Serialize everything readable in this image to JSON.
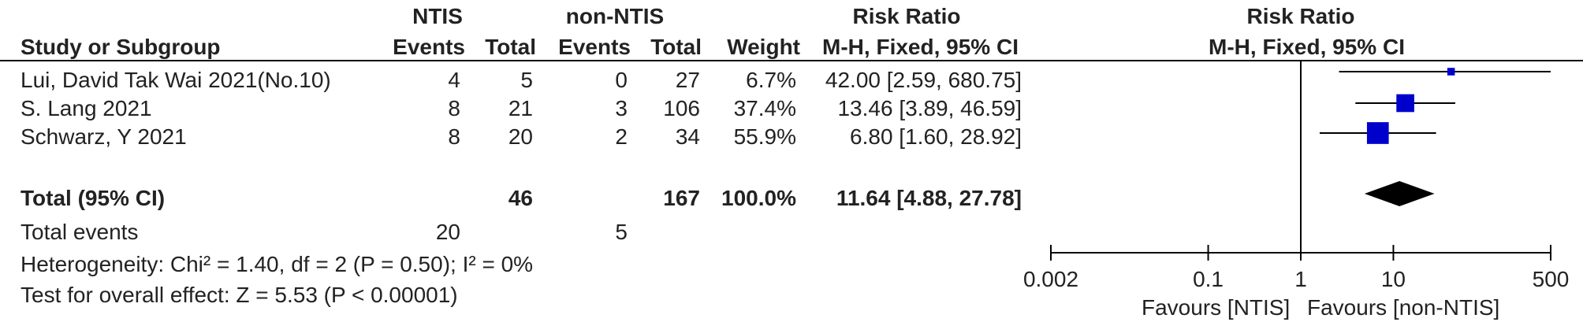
{
  "headers": {
    "group1": "NTIS",
    "group2": "non-NTIS",
    "risk_ratio": "Risk Ratio",
    "risk_ratio_plot": "Risk Ratio",
    "study": "Study or Subgroup",
    "events1": "Events",
    "total1": "Total",
    "events2": "Events",
    "total2": "Total",
    "weight": "Weight",
    "method": "M-H, Fixed, 95% CI",
    "method_plot": "M-H, Fixed, 95% CI"
  },
  "studies": [
    {
      "name": "Lui, David Tak Wai 2021(No.10)",
      "events1": "4",
      "total1": "5",
      "events2": "0",
      "total2": "27",
      "weight": "6.7%",
      "ci_text": "42.00 [2.59, 680.75]"
    },
    {
      "name": "S. Lang 2021",
      "events1": "8",
      "total1": "21",
      "events2": "3",
      "total2": "106",
      "weight": "37.4%",
      "ci_text": "13.46 [3.89, 46.59]"
    },
    {
      "name": "Schwarz, Y 2021",
      "events1": "8",
      "total1": "20",
      "events2": "2",
      "total2": "34",
      "weight": "55.9%",
      "ci_text": "6.80 [1.60, 28.92]"
    }
  ],
  "total_row": {
    "label": "Total (95% CI)",
    "total1": "46",
    "total2": "167",
    "weight": "100.0%",
    "ci_text": "11.64 [4.88, 27.78]"
  },
  "events_row": {
    "label": "Total events",
    "events1": "20",
    "events2": "5"
  },
  "heterogeneity": "Heterogeneity: Chi² = 1.40, df = 2 (P = 0.50); I² = 0%",
  "overall_effect": "Test for overall effect: Z = 5.53 (P < 0.00001)",
  "axis": {
    "favours_left": "Favours [NTIS]",
    "favours_right": "Favours [non-NTIS]"
  },
  "colors": {
    "marker": "#0000cc",
    "diamond": "#000000",
    "line": "#000000"
  },
  "chart_data": {
    "type": "forest",
    "scale": "log",
    "xlim": [
      0.002,
      500
    ],
    "ticks": [
      0.002,
      0.1,
      1,
      10,
      500
    ],
    "tick_labels": [
      "0.002",
      "0.1",
      "1",
      "10",
      "500"
    ],
    "null_value": 1,
    "studies": [
      {
        "name": "Lui, David Tak Wai 2021(No.10)",
        "rr": 42.0,
        "lower": 2.59,
        "upper": 680.75,
        "weight": 6.7
      },
      {
        "name": "S. Lang 2021",
        "rr": 13.46,
        "lower": 3.89,
        "upper": 46.59,
        "weight": 37.4
      },
      {
        "name": "Schwarz, Y 2021",
        "rr": 6.8,
        "lower": 1.6,
        "upper": 28.92,
        "weight": 55.9
      }
    ],
    "pooled": {
      "rr": 11.64,
      "lower": 4.88,
      "upper": 27.78
    }
  }
}
